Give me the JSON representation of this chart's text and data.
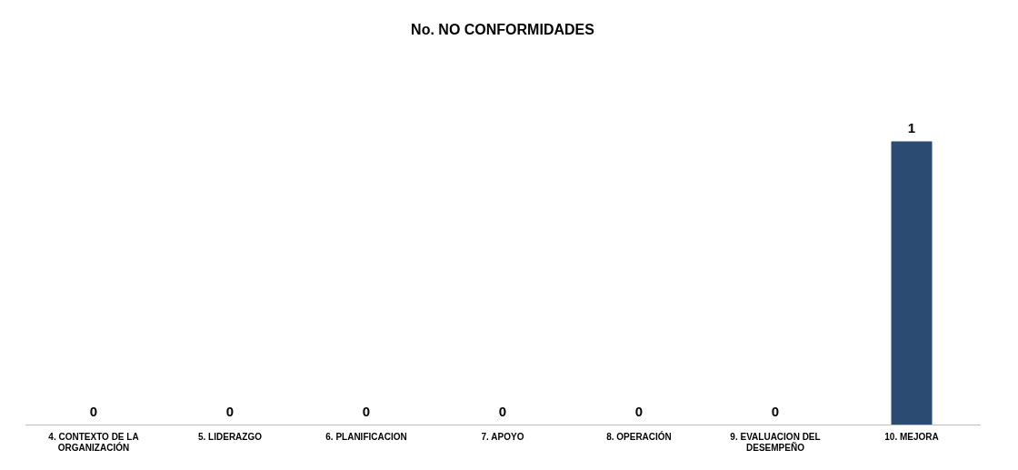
{
  "chart_data": {
    "type": "bar",
    "title": "No. NO CONFORMIDADES",
    "categories": [
      "4. CONTEXTO DE LA ORGANIZACIÓN",
      "5. LIDERAZGO",
      "6. PLANIFICACION",
      "7. APOYO",
      "8. OPERACIÓN",
      "9. EVALUACION DEL DESEMPEÑO",
      "10. MEJORA"
    ],
    "values": [
      0,
      0,
      0,
      0,
      0,
      0,
      1
    ],
    "color": "#2b4b73",
    "data_labels": true,
    "grid": false,
    "legend": false,
    "tick_labels": "x"
  }
}
